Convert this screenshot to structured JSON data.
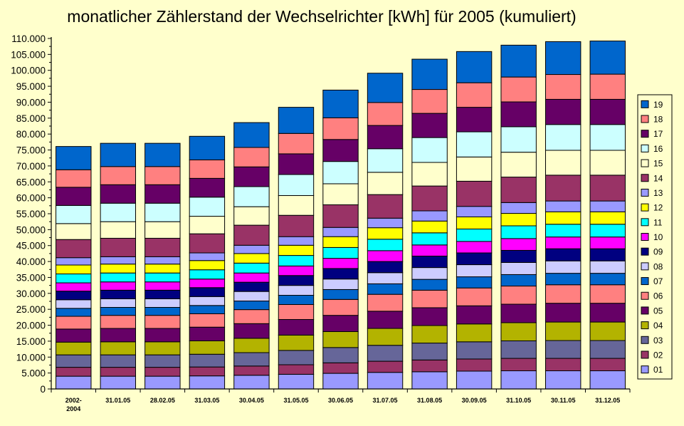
{
  "chart_data": {
    "type": "bar",
    "stacked": true,
    "title": "monatlicher Zählerstand der Wechselrichter [kWh] für 2005 (kumuliert)",
    "xlabel": "",
    "ylabel": "",
    "categories": [
      [
        "2002-",
        "2004"
      ],
      [
        "31.01.05"
      ],
      [
        "28.02.05"
      ],
      [
        "31.03.05"
      ],
      [
        "30.04.05"
      ],
      [
        "31.05.05"
      ],
      [
        "30.06.05"
      ],
      [
        "31.07.05"
      ],
      [
        "31.08.05"
      ],
      [
        "30.09.05"
      ],
      [
        "31.10.05"
      ],
      [
        "30.11.05"
      ],
      [
        "31.12.05"
      ]
    ],
    "ylim": [
      0,
      110000
    ],
    "ytick_step": 5000,
    "ytick_labels": [
      "0",
      "5.000",
      "10.000",
      "15.000",
      "20.000",
      "25.000",
      "30.000",
      "35.000",
      "40.000",
      "45.000",
      "50.000",
      "55.000",
      "60.000",
      "65.000",
      "70.000",
      "75.000",
      "80.000",
      "85.000",
      "90.000",
      "95.000",
      "100.000",
      "105.000",
      "110.000"
    ],
    "grid": false,
    "legend_position": "right",
    "background_color": "#FFFFCC",
    "series": [
      {
        "name": "01",
        "color": "#9999FF",
        "values": [
          4000,
          4000,
          4000,
          4100,
          4300,
          4600,
          4900,
          5200,
          5400,
          5600,
          5700,
          5700,
          5700
        ]
      },
      {
        "name": "02",
        "color": "#993366",
        "values": [
          2800,
          2800,
          2800,
          2800,
          2900,
          3000,
          3300,
          3500,
          3700,
          3800,
          3900,
          3900,
          3900
        ]
      },
      {
        "name": "03",
        "color": "#666699",
        "values": [
          3900,
          3900,
          3900,
          4000,
          4200,
          4500,
          4800,
          5000,
          5300,
          5400,
          5500,
          5600,
          5600
        ]
      },
      {
        "name": "04",
        "color": "#B3B300",
        "values": [
          4000,
          4100,
          4100,
          4200,
          4500,
          4800,
          5000,
          5300,
          5500,
          5600,
          5700,
          5800,
          5800
        ]
      },
      {
        "name": "05",
        "color": "#660066",
        "values": [
          4100,
          4200,
          4200,
          4300,
          4600,
          4900,
          5100,
          5400,
          5600,
          5700,
          5800,
          5900,
          5900
        ]
      },
      {
        "name": "06",
        "color": "#FF8080",
        "values": [
          4000,
          4100,
          4100,
          4200,
          4400,
          4700,
          5000,
          5300,
          5500,
          5600,
          5700,
          5800,
          5800
        ]
      },
      {
        "name": "07",
        "color": "#0066CC",
        "values": [
          2500,
          2500,
          2500,
          2600,
          2700,
          2900,
          3100,
          3300,
          3400,
          3500,
          3600,
          3600,
          3600
        ]
      },
      {
        "name": "08",
        "color": "#CCCCFF",
        "values": [
          2700,
          2700,
          2700,
          2800,
          3000,
          3100,
          3300,
          3500,
          3700,
          3800,
          3800,
          3900,
          3900
        ]
      },
      {
        "name": "09",
        "color": "#000080",
        "values": [
          2700,
          2700,
          2700,
          2800,
          2900,
          3100,
          3300,
          3500,
          3600,
          3700,
          3800,
          3800,
          3800
        ]
      },
      {
        "name": "10",
        "color": "#FF00FF",
        "values": [
          2600,
          2600,
          2600,
          2700,
          2900,
          3000,
          3200,
          3400,
          3500,
          3600,
          3700,
          3700,
          3700
        ]
      },
      {
        "name": "11",
        "color": "#00FFFF",
        "values": [
          2800,
          2800,
          2800,
          2900,
          3100,
          3300,
          3400,
          3600,
          3800,
          3900,
          4000,
          4000,
          4000
        ]
      },
      {
        "name": "12",
        "color": "#FFFF00",
        "values": [
          2800,
          2800,
          2800,
          2900,
          3000,
          3200,
          3400,
          3600,
          3700,
          3800,
          3900,
          3900,
          3900
        ]
      },
      {
        "name": "13",
        "color": "#9999FF",
        "values": [
          2300,
          2300,
          2300,
          2400,
          2600,
          2700,
          2900,
          3000,
          3200,
          3300,
          3400,
          3400,
          3400
        ]
      },
      {
        "name": "14",
        "color": "#993366",
        "values": [
          5700,
          5800,
          5800,
          6000,
          6300,
          6700,
          7100,
          7400,
          7800,
          7900,
          8000,
          8100,
          8100
        ]
      },
      {
        "name": "15",
        "color": "#FFFFCC",
        "values": [
          5000,
          5200,
          5200,
          5500,
          5800,
          6200,
          6600,
          7000,
          7400,
          7600,
          7800,
          7800,
          7800
        ]
      },
      {
        "name": "16",
        "color": "#CCFFFF",
        "values": [
          5700,
          5800,
          5800,
          6000,
          6300,
          6600,
          7000,
          7400,
          7800,
          7900,
          8000,
          8100,
          8100
        ]
      },
      {
        "name": "17",
        "color": "#660066",
        "values": [
          5700,
          5800,
          5800,
          5900,
          6200,
          6500,
          6900,
          7300,
          7600,
          7700,
          7800,
          7900,
          7900
        ]
      },
      {
        "name": "18",
        "color": "#FF8080",
        "values": [
          5500,
          5700,
          5700,
          5800,
          6100,
          6400,
          6800,
          7200,
          7500,
          7700,
          7800,
          7800,
          7900
        ]
      },
      {
        "name": "19",
        "color": "#0066CC",
        "values": [
          7300,
          7300,
          7300,
          7400,
          7800,
          8200,
          8700,
          9200,
          9500,
          9800,
          10000,
          10300,
          10400
        ]
      }
    ]
  }
}
